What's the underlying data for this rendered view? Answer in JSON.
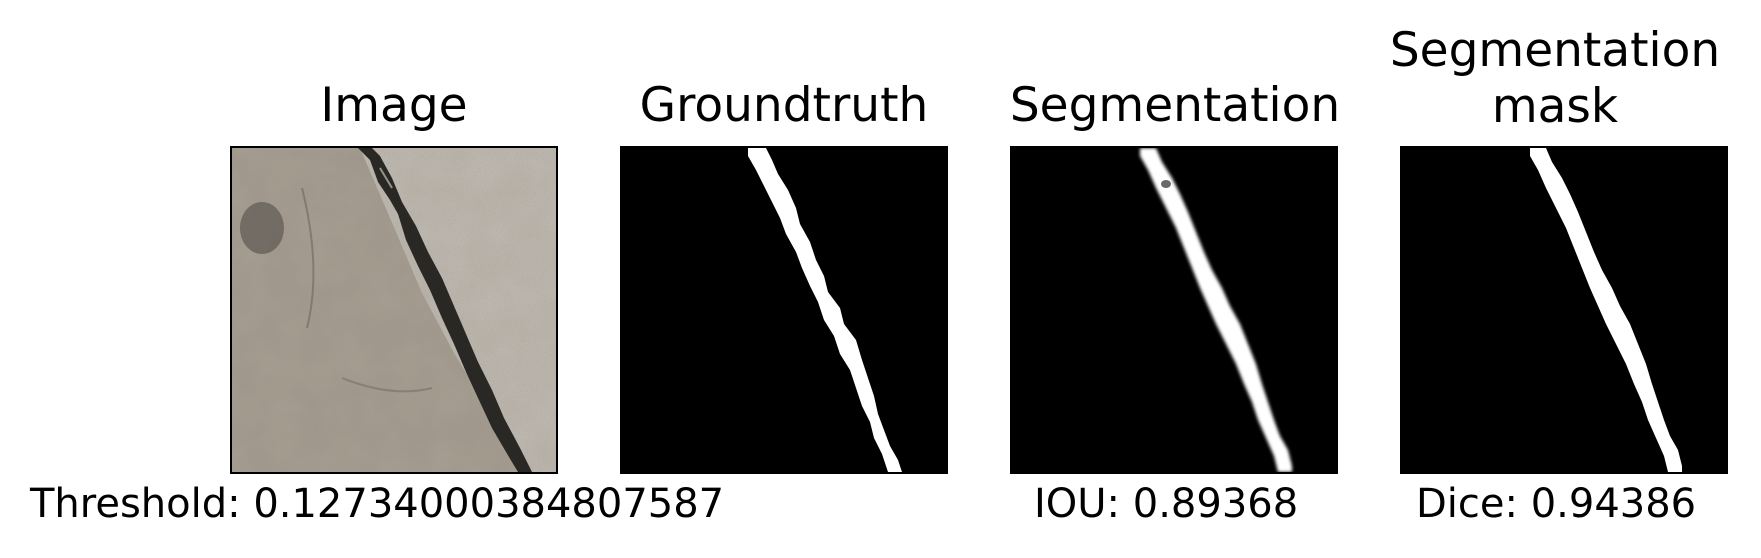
{
  "panels": {
    "image": {
      "title": "Image"
    },
    "groundtruth": {
      "title": "Groundtruth"
    },
    "segmentation": {
      "title": "Segmentation"
    },
    "mask": {
      "title_line1": "Segmentation",
      "title_line2": "mask"
    }
  },
  "captions": {
    "threshold": "Threshold: 0.12734000384807587",
    "iou": "IOU: 0.89368",
    "dice": "Dice: 0.94386"
  },
  "colors": {
    "background": "#000000",
    "foreground": "#ffffff",
    "rock_light": "#c9c6c0",
    "rock_mid": "#9e958a",
    "rock_dark": "#7a7167",
    "crack": "#2b2a26"
  }
}
